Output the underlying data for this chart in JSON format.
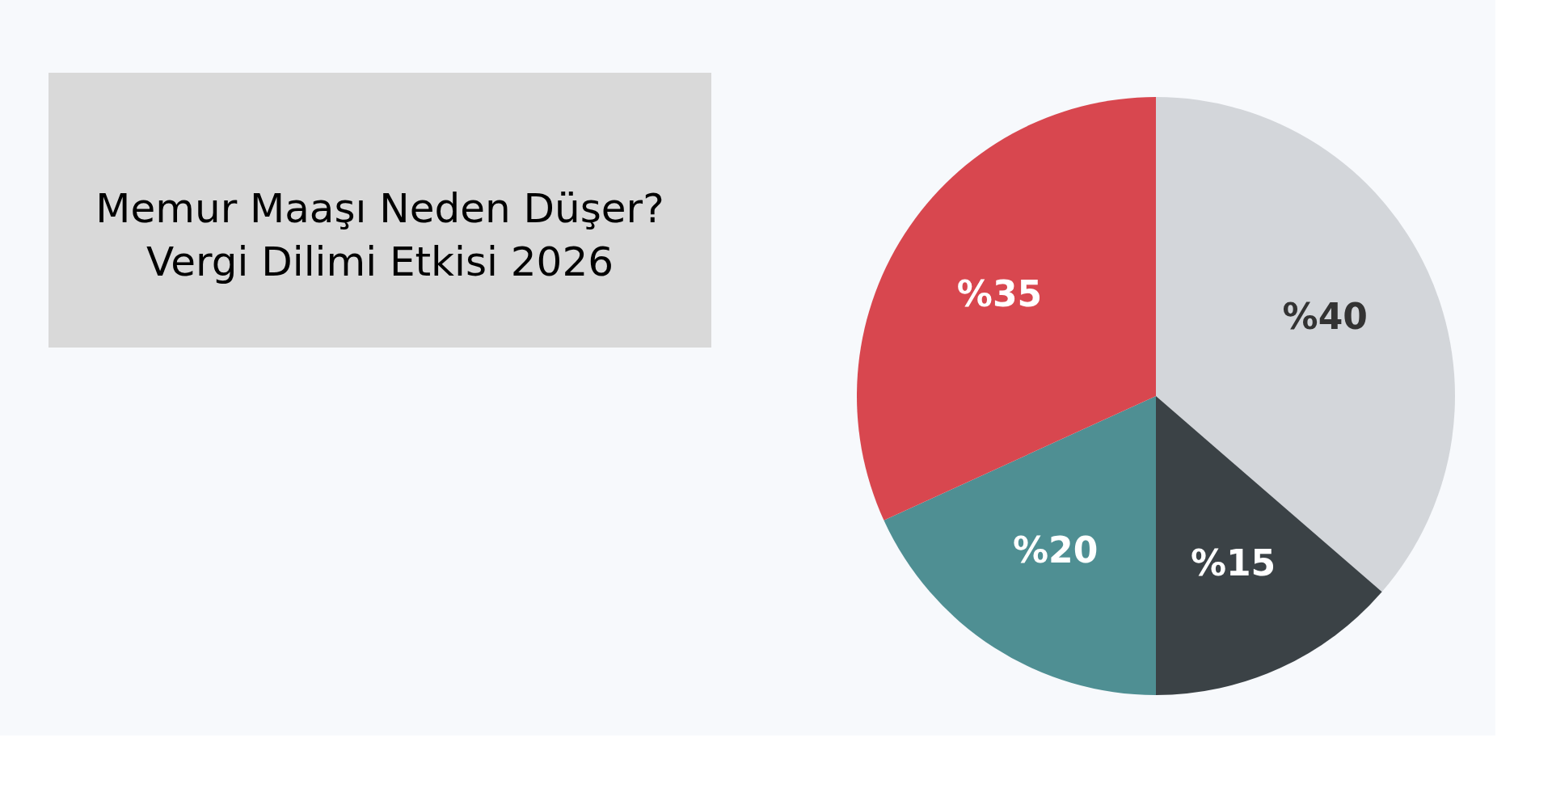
{
  "chart_data": {
    "type": "pie",
    "title": "Memur Maaşı Neden Düşer? Vergi Dilimi Etkisi 2026",
    "categories": [
      null,
      null,
      null,
      null
    ],
    "values": [
      40,
      15,
      20,
      35
    ],
    "colors": [
      "#d3d6da",
      "#3b4246",
      "#4f8f93",
      "#d8474f"
    ],
    "value_labels": [
      "%40",
      "%15",
      "%20",
      "%35"
    ],
    "legend": false
  }
}
